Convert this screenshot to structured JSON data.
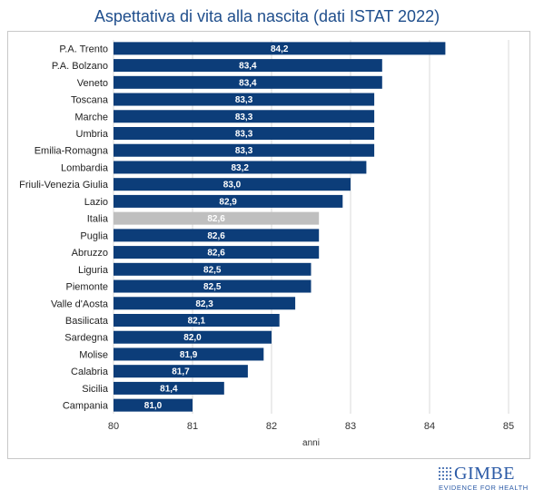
{
  "title": "Aspettativa di vita alla nascita (dati ISTAT 2022)",
  "colors": {
    "bar": "#0c3d79",
    "highlight": "#bfbfbf",
    "grid": "#d9d9d9",
    "title": "#1f4e8c"
  },
  "logo": {
    "word": "GIMBE",
    "tagline": "EVIDENCE FOR HEALTH"
  },
  "chart_data": {
    "type": "bar",
    "orientation": "horizontal",
    "title": "Aspettativa di vita alla nascita (dati ISTAT 2022)",
    "xlabel": "anni",
    "xlim": [
      80,
      85
    ],
    "xticks": [
      "80",
      "81",
      "82",
      "83",
      "84",
      "85"
    ],
    "grid": true,
    "highlight_category": "Italia",
    "categories": [
      "P.A. Trento",
      "P.A. Bolzano",
      "Veneto",
      "Toscana",
      "Marche",
      "Umbria",
      "Emilia-Romagna",
      "Lombardia",
      "Friuli-Venezia Giulia",
      "Lazio",
      "Italia",
      "Puglia",
      "Abruzzo",
      "Liguria",
      "Piemonte",
      "Valle d'Aosta",
      "Basilicata",
      "Sardegna",
      "Molise",
      "Calabria",
      "Sicilia",
      "Campania"
    ],
    "values": [
      84.2,
      83.4,
      83.4,
      83.3,
      83.3,
      83.3,
      83.3,
      83.2,
      83.0,
      82.9,
      82.6,
      82.6,
      82.6,
      82.5,
      82.5,
      82.3,
      82.1,
      82.0,
      81.9,
      81.7,
      81.4,
      81.0
    ],
    "value_labels": [
      "84,2",
      "83,4",
      "83,4",
      "83,3",
      "83,3",
      "83,3",
      "83,3",
      "83,2",
      "83,0",
      "82,9",
      "82,6",
      "82,6",
      "82,6",
      "82,5",
      "82,5",
      "82,3",
      "82,1",
      "82,0",
      "81,9",
      "81,7",
      "81,4",
      "81,0"
    ]
  }
}
